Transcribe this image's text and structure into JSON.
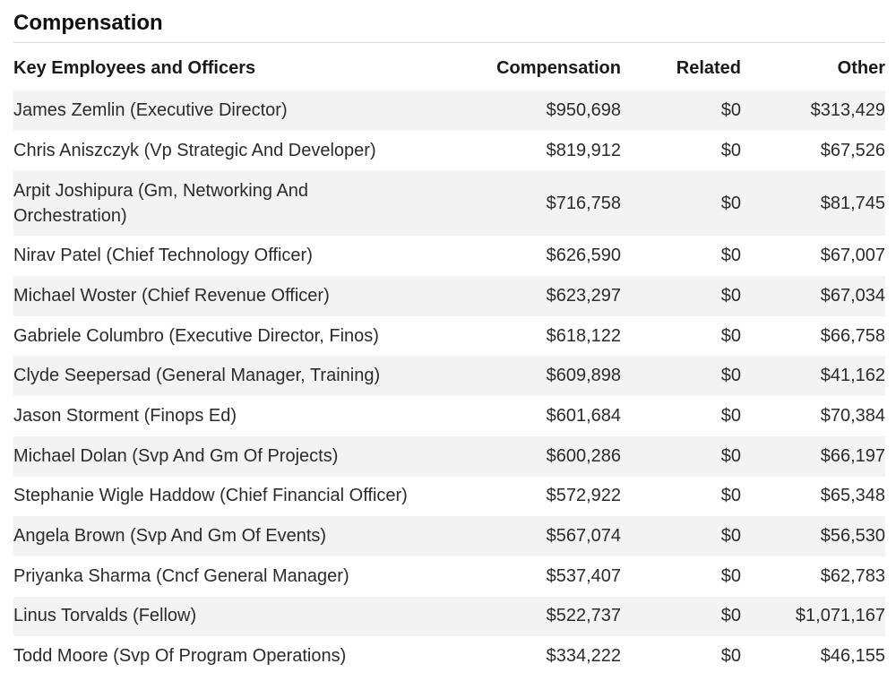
{
  "section": {
    "title": "Compensation"
  },
  "table": {
    "headers": {
      "name": "Key Employees and Officers",
      "compensation": "Compensation",
      "related": "Related",
      "other": "Other"
    },
    "rows": [
      {
        "name": "James Zemlin (Executive Director)",
        "compensation": "$950,698",
        "related": "$0",
        "other": "$313,429"
      },
      {
        "name": "Chris Aniszczyk (Vp Strategic And Developer)",
        "compensation": "$819,912",
        "related": "$0",
        "other": "$67,526"
      },
      {
        "name": "Arpit Joshipura (Gm, Networking And Orchestration)",
        "compensation": "$716,758",
        "related": "$0",
        "other": "$81,745"
      },
      {
        "name": "Nirav Patel (Chief Technology Officer)",
        "compensation": "$626,590",
        "related": "$0",
        "other": "$67,007"
      },
      {
        "name": "Michael Woster (Chief Revenue Officer)",
        "compensation": "$623,297",
        "related": "$0",
        "other": "$67,034"
      },
      {
        "name": "Gabriele Columbro (Executive Director, Finos)",
        "compensation": "$618,122",
        "related": "$0",
        "other": "$66,758"
      },
      {
        "name": "Clyde Seepersad (General Manager, Training)",
        "compensation": "$609,898",
        "related": "$0",
        "other": "$41,162"
      },
      {
        "name": "Jason Storment (Finops Ed)",
        "compensation": "$601,684",
        "related": "$0",
        "other": "$70,384"
      },
      {
        "name": "Michael Dolan (Svp And Gm Of Projects)",
        "compensation": "$600,286",
        "related": "$0",
        "other": "$66,197"
      },
      {
        "name": "Stephanie Wigle Haddow (Chief Financial Officer)",
        "compensation": "$572,922",
        "related": "$0",
        "other": "$65,348"
      },
      {
        "name": "Angela Brown (Svp And Gm Of Events)",
        "compensation": "$567,074",
        "related": "$0",
        "other": "$56,530"
      },
      {
        "name": "Priyanka Sharma (Cncf General Manager)",
        "compensation": "$537,407",
        "related": "$0",
        "other": "$62,783"
      },
      {
        "name": "Linus Torvalds (Fellow)",
        "compensation": "$522,737",
        "related": "$0",
        "other": "$1,071,167"
      },
      {
        "name": "Todd Moore (Svp Of Program Operations)",
        "compensation": "$334,222",
        "related": "$0",
        "other": "$46,155"
      }
    ]
  }
}
